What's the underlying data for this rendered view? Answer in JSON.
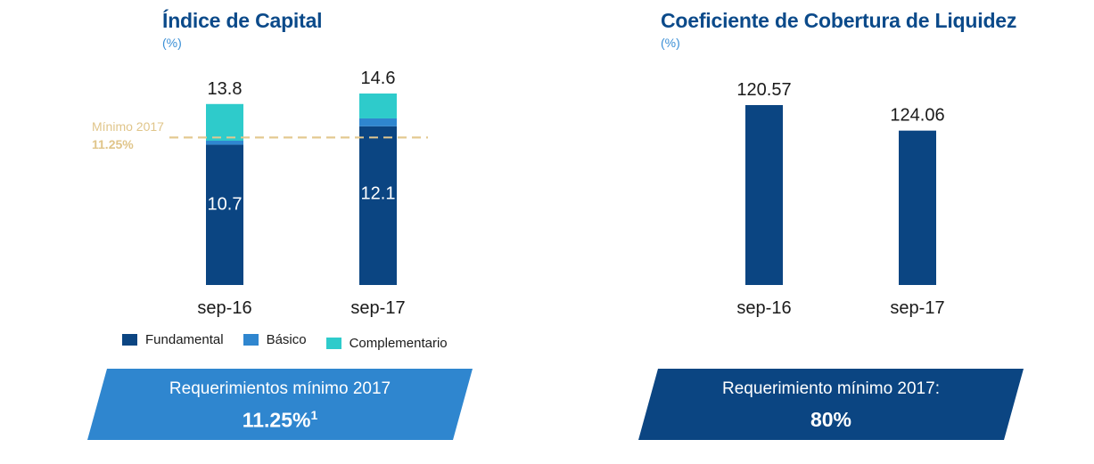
{
  "left_chart": {
    "title": "Índice de Capital",
    "unit": "(%)",
    "minimum_label": "Mínimo 2017",
    "minimum_value_label": "11.25%",
    "legend": [
      {
        "name": "Fundamental",
        "color": "#0b4582"
      },
      {
        "name": "Básico",
        "color": "#2f86cf"
      },
      {
        "name": "Complementario",
        "color": "#2ecbcb"
      }
    ],
    "banner": {
      "line1": "Requerimientos mínimo 2017",
      "line2": "11.25%",
      "footnote": "1",
      "color": "#2f86cf"
    }
  },
  "right_chart": {
    "title": "Coeficiente de Cobertura de Liquidez",
    "unit": "(%)",
    "banner": {
      "line1": "Requerimiento mínimo 2017:",
      "line2": "80%",
      "color": "#0b4582"
    }
  },
  "chart_data": [
    {
      "type": "bar",
      "stacked": true,
      "title": "Índice de Capital",
      "ylabel": "(%)",
      "categories": [
        "sep-16",
        "sep-17"
      ],
      "series": [
        {
          "name": "Fundamental",
          "values": [
            10.7,
            12.1
          ],
          "color": "#0b4582"
        },
        {
          "name": "Básico",
          "values": [
            0.3,
            0.6
          ],
          "color": "#2f86cf"
        },
        {
          "name": "Complementario",
          "values": [
            2.8,
            1.9
          ],
          "color": "#2ecbcb"
        }
      ],
      "totals": [
        13.8,
        14.6
      ],
      "reference_line": {
        "label": "Mínimo 2017",
        "value": 11.25,
        "style": "dashed"
      },
      "ylim": [
        0,
        14.6
      ]
    },
    {
      "type": "bar",
      "title": "Coeficiente de Cobertura de Liquidez",
      "ylabel": "(%)",
      "categories": [
        "sep-16",
        "sep-17"
      ],
      "values": [
        120.57,
        124.06
      ],
      "value_labels": [
        "120.57",
        "124.06"
      ],
      "color": "#0b4582"
    }
  ]
}
